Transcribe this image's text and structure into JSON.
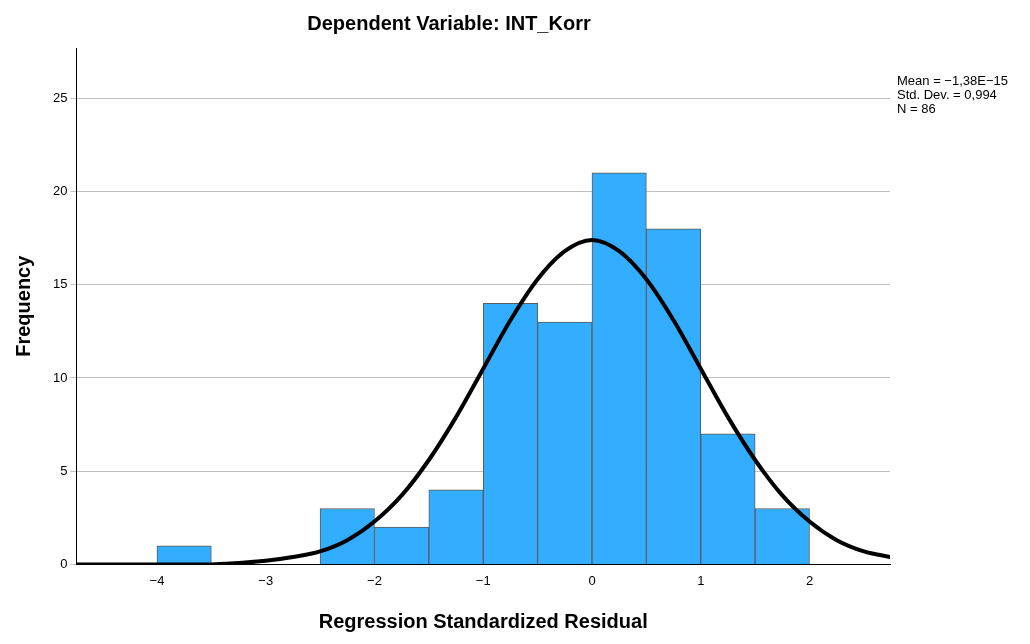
{
  "chart_data": {
    "type": "histogram",
    "title": "Dependent Variable: INT_Korr",
    "xlabel": "Regression Standardized Residual",
    "ylabel": "Frequency",
    "annotations": [
      "Mean = −1,38E−15",
      "Std. Dev. = 0,994",
      "N = 86"
    ],
    "bins": [
      -4,
      -3.5,
      -3,
      -2.5,
      -2,
      -1.5,
      -1,
      -0.5,
      0,
      0.5,
      1,
      1.5,
      2
    ],
    "series": [
      {
        "type": "histogram",
        "color": "#33adff",
        "values": [
          1,
          0,
          0,
          3,
          2,
          4,
          14,
          13,
          21,
          18,
          7,
          3
        ]
      },
      {
        "type": "line",
        "color": "#000000",
        "x": [
          -4.74,
          -4.5,
          -4,
          -3.5,
          -3,
          -2.75,
          -2.5,
          -2.25,
          -2,
          -1.75,
          -1.5,
          -1.25,
          -1,
          -0.75,
          -0.5,
          -0.25,
          0,
          0.25,
          0.5,
          0.75,
          1,
          1.25,
          1.5,
          1.75,
          2,
          2.25,
          2.5,
          2.74
        ],
        "values": [
          0,
          0,
          0,
          0,
          0.2,
          0.4,
          0.7,
          1.3,
          2.3,
          3.7,
          5.6,
          7.9,
          10.5,
          13.1,
          15.3,
          16.8,
          17.4,
          16.8,
          15.3,
          13.1,
          10.5,
          7.9,
          5.6,
          3.7,
          2.3,
          1.3,
          0.7,
          0.4
        ]
      }
    ],
    "xlim": [
      -4.74,
      2.74
    ],
    "xticks": [
      -4,
      -3,
      -2,
      -1,
      0,
      1,
      2
    ],
    "ylim": [
      0,
      27.7
    ],
    "yticks": [
      0,
      5,
      10,
      15,
      20,
      25
    ],
    "grid": "y"
  }
}
